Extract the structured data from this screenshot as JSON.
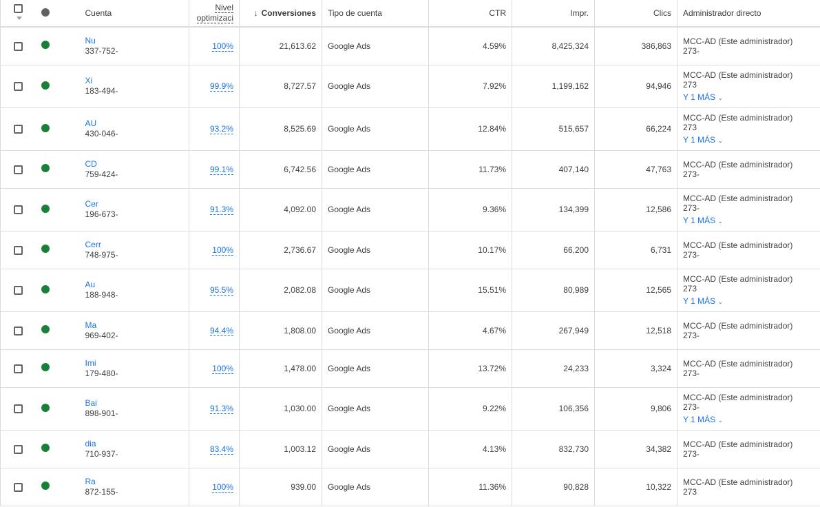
{
  "header": {
    "cuenta": "Cuenta",
    "nivel_line1": "Nivel",
    "nivel_line2": "optimizaci",
    "conversiones": "Conversiones",
    "sort_icon": "arrow-down-icon",
    "tipo": "Tipo de cuenta",
    "ctr": "CTR",
    "impr": "Impr.",
    "clics": "Clics",
    "admin": "Administrador directo"
  },
  "colors": {
    "status": "#188038",
    "link": "#1a73e8"
  },
  "rows": [
    {
      "name": "Nu",
      "id": "337-752-",
      "opt": "100%",
      "conv": "21,613.62",
      "tipo": "Google Ads",
      "ctr": "4.59%",
      "impr": "8,425,324",
      "clics": "386,863",
      "admin": "MCC-AD (Este administrador)",
      "admin_id": "273-",
      "more": ""
    },
    {
      "name": "Xi",
      "id": "183-494-",
      "opt": "99.9%",
      "conv": "8,727.57",
      "tipo": "Google Ads",
      "ctr": "7.92%",
      "impr": "1,199,162",
      "clics": "94,946",
      "admin": "MCC-AD (Este administrador)",
      "admin_id": "273",
      "more": "Y 1 MÁS"
    },
    {
      "name": "AU",
      "id": "430-046-",
      "opt": "93.2%",
      "conv": "8,525.69",
      "tipo": "Google Ads",
      "ctr": "12.84%",
      "impr": "515,657",
      "clics": "66,224",
      "admin": "MCC-AD (Este administrador)",
      "admin_id": "273",
      "more": "Y 1 MÁS"
    },
    {
      "name": "CD",
      "id": "759-424-",
      "opt": "99.1%",
      "conv": "6,742.56",
      "tipo": "Google Ads",
      "ctr": "11.73%",
      "impr": "407,140",
      "clics": "47,763",
      "admin": "MCC-AD (Este administrador)",
      "admin_id": "273-",
      "more": ""
    },
    {
      "name": "Cer",
      "id": "196-673-",
      "opt": "91.3%",
      "conv": "4,092.00",
      "tipo": "Google Ads",
      "ctr": "9.36%",
      "impr": "134,399",
      "clics": "12,586",
      "admin": "MCC-AD (Este administrador)",
      "admin_id": "273-",
      "more": "Y 1 MÁS"
    },
    {
      "name": "Cerr",
      "id": "748-975-",
      "opt": "100%",
      "conv": "2,736.67",
      "tipo": "Google Ads",
      "ctr": "10.17%",
      "impr": "66,200",
      "clics": "6,731",
      "admin": "MCC-AD (Este administrador)",
      "admin_id": "273-",
      "more": ""
    },
    {
      "name": "Au",
      "id": "188-948-",
      "opt": "95.5%",
      "conv": "2,082.08",
      "tipo": "Google Ads",
      "ctr": "15.51%",
      "impr": "80,989",
      "clics": "12,565",
      "admin": "MCC-AD (Este administrador)",
      "admin_id": "273",
      "more": "Y 1 MÁS"
    },
    {
      "name": "Ma",
      "id": "969-402-",
      "opt": "94.4%",
      "conv": "1,808.00",
      "tipo": "Google Ads",
      "ctr": "4.67%",
      "impr": "267,949",
      "clics": "12,518",
      "admin": "MCC-AD (Este administrador)",
      "admin_id": "273-",
      "more": ""
    },
    {
      "name": "Imi",
      "id": "179-480-",
      "opt": "100%",
      "conv": "1,478.00",
      "tipo": "Google Ads",
      "ctr": "13.72%",
      "impr": "24,233",
      "clics": "3,324",
      "admin": "MCC-AD (Este administrador)",
      "admin_id": "273-",
      "more": ""
    },
    {
      "name": "Bai",
      "id": "898-901-",
      "opt": "91.3%",
      "conv": "1,030.00",
      "tipo": "Google Ads",
      "ctr": "9.22%",
      "impr": "106,356",
      "clics": "9,806",
      "admin": "MCC-AD (Este administrador)",
      "admin_id": "273-",
      "more": "Y 1 MÁS"
    },
    {
      "name": "dia",
      "id": "710-937-",
      "opt": "83.4%",
      "conv": "1,003.12",
      "tipo": "Google Ads",
      "ctr": "4.13%",
      "impr": "832,730",
      "clics": "34,382",
      "admin": "MCC-AD (Este administrador)",
      "admin_id": "273-",
      "more": ""
    },
    {
      "name": "Ra",
      "id": "872-155-",
      "opt": "100%",
      "conv": "939.00",
      "tipo": "Google Ads",
      "ctr": "11.36%",
      "impr": "90,828",
      "clics": "10,322",
      "admin": "MCC-AD (Este administrador)",
      "admin_id": "273",
      "more": ""
    }
  ]
}
